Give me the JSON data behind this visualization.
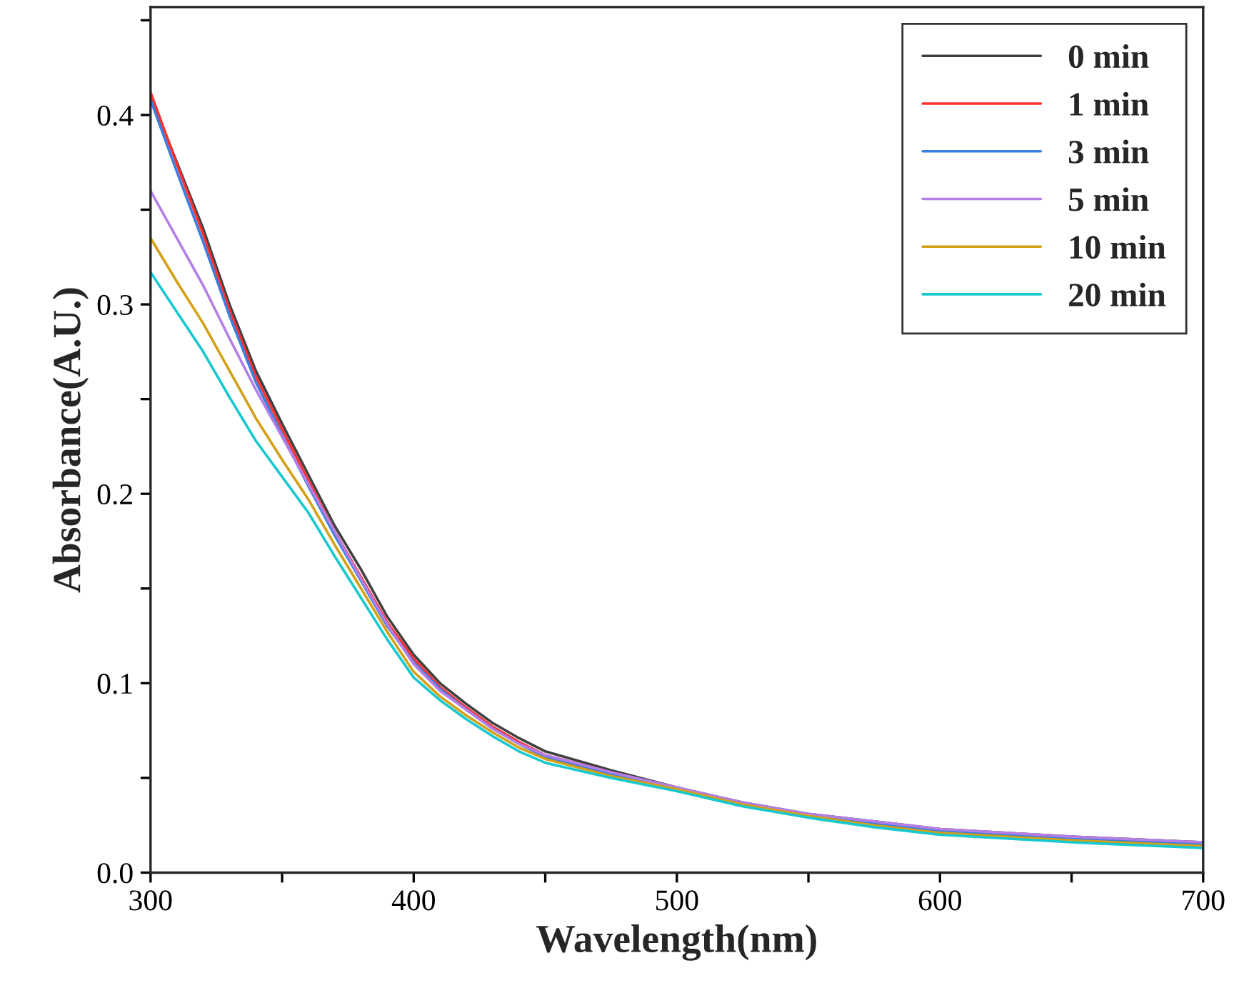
{
  "chart_data": {
    "type": "line",
    "xlabel": "Wavelength(nm)",
    "ylabel": "Absorbance(A.U.)",
    "xlim": [
      300,
      700
    ],
    "ylim": [
      0,
      0.457
    ],
    "xticks": [
      300,
      {
        "value": 350,
        "label": null
      },
      400,
      {
        "value": 450,
        "label": null
      },
      500,
      {
        "value": 550,
        "label": null
      },
      600,
      {
        "value": 650,
        "label": null
      },
      700
    ],
    "yticks": [
      {
        "value": 0,
        "label": "0.0"
      },
      {
        "value": 0.05,
        "label": null
      },
      0.1,
      {
        "value": 0.15,
        "label": null
      },
      0.2,
      {
        "value": 0.25,
        "label": null
      },
      0.3,
      {
        "value": 0.35,
        "label": null
      },
      0.4,
      {
        "value": 0.45,
        "label": null
      }
    ],
    "x": [
      300,
      310,
      320,
      330,
      340,
      350,
      360,
      370,
      380,
      390,
      400,
      410,
      420,
      430,
      440,
      450,
      475,
      500,
      525,
      550,
      575,
      600,
      650,
      700
    ],
    "grid": false,
    "legend": "top right",
    "marker": "none",
    "line_style": "solid",
    "series": [
      {
        "name": "0 min",
        "color": "#404040",
        "values": [
          0.41,
          0.375,
          0.34,
          0.3,
          0.265,
          0.237,
          0.21,
          0.183,
          0.16,
          0.135,
          0.115,
          0.1,
          0.089,
          0.079,
          0.071,
          0.064,
          0.054,
          0.045,
          0.037,
          0.031,
          0.027,
          0.023,
          0.019,
          0.016
        ]
      },
      {
        "name": "1 min",
        "color": "#ff3030",
        "values": [
          0.412,
          0.374,
          0.337,
          0.297,
          0.262,
          0.234,
          0.207,
          0.18,
          0.156,
          0.132,
          0.113,
          0.098,
          0.087,
          0.077,
          0.069,
          0.062,
          0.053,
          null,
          null,
          null,
          null,
          null,
          null,
          null
        ]
      },
      {
        "name": "3 min",
        "color": "#3a7fe0",
        "values": [
          0.408,
          0.37,
          0.333,
          0.294,
          0.259,
          0.231,
          0.204,
          0.178,
          0.154,
          0.13,
          0.111,
          0.097,
          0.086,
          0.076,
          0.068,
          0.061,
          0.052,
          0.044,
          0.036,
          0.03,
          0.026,
          0.022,
          0.018,
          0.015
        ]
      },
      {
        "name": "5 min",
        "color": "#b57ee6",
        "values": [
          0.36,
          0.335,
          0.31,
          0.282,
          0.255,
          0.23,
          0.205,
          0.18,
          0.155,
          0.131,
          0.11,
          0.096,
          0.086,
          0.076,
          0.068,
          0.062,
          0.053,
          0.045,
          0.037,
          0.031,
          0.027,
          0.023,
          0.019,
          0.016
        ]
      },
      {
        "name": "10 min",
        "color": "#d4a017",
        "values": [
          0.335,
          0.312,
          0.29,
          0.265,
          0.24,
          0.218,
          0.197,
          0.173,
          0.15,
          0.127,
          0.106,
          0.093,
          0.083,
          0.074,
          0.066,
          0.06,
          0.051,
          0.044,
          0.036,
          0.03,
          0.025,
          0.021,
          0.017,
          0.014
        ]
      },
      {
        "name": "20 min",
        "color": "#18c8d0",
        "values": [
          0.317,
          0.296,
          0.275,
          0.251,
          0.228,
          0.209,
          0.19,
          0.167,
          0.145,
          0.123,
          0.103,
          0.091,
          0.081,
          0.072,
          0.064,
          0.058,
          0.05,
          0.043,
          0.035,
          0.029,
          0.024,
          0.02,
          0.016,
          0.013
        ]
      }
    ]
  }
}
